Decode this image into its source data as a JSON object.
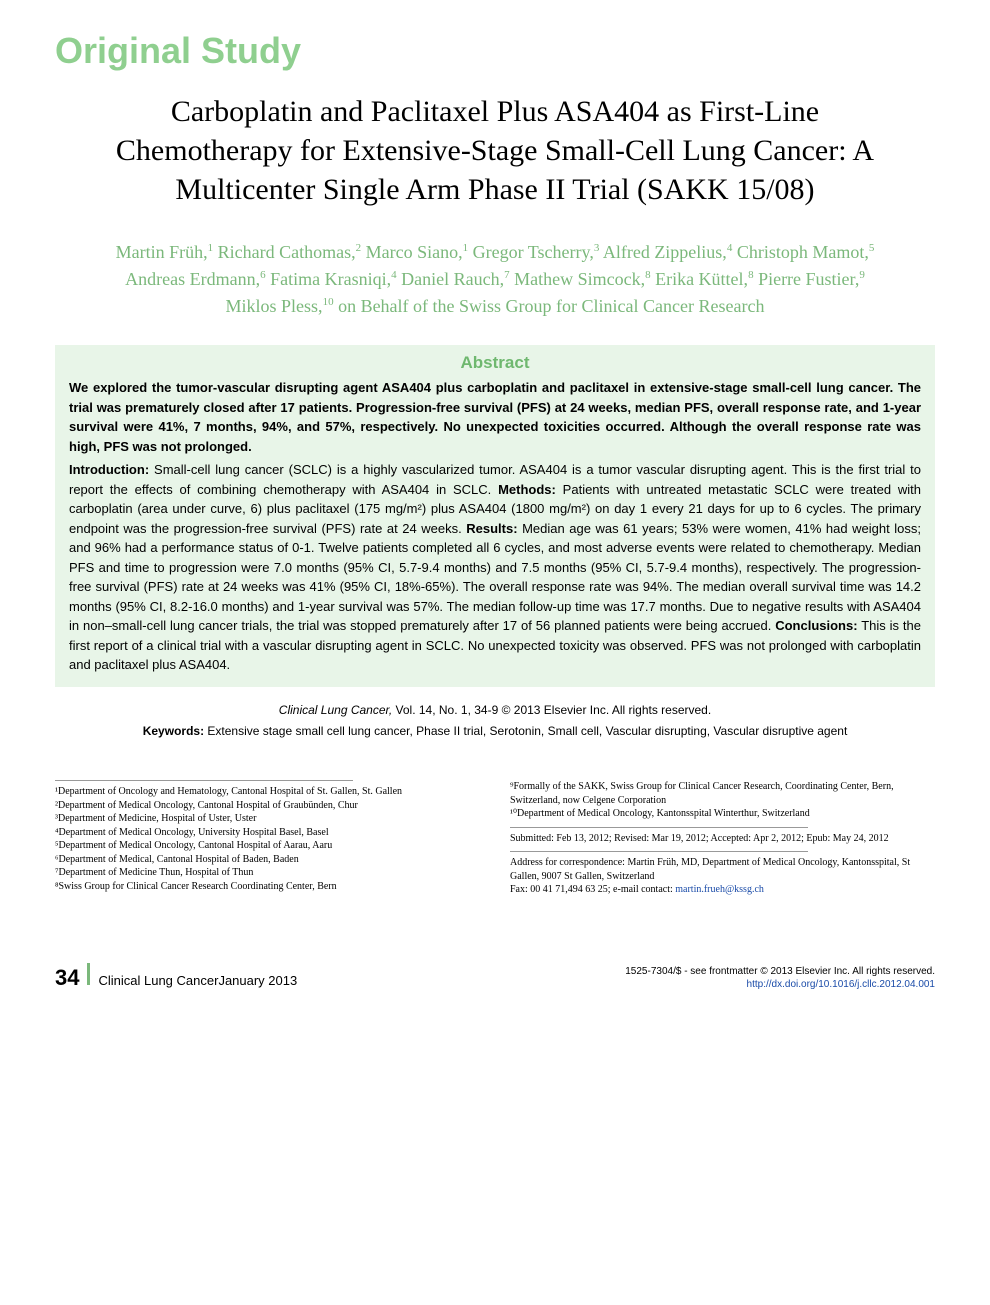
{
  "section_label": "Original Study",
  "title": "Carboplatin and Paclitaxel Plus ASA404 as First-Line Chemotherapy for Extensive-Stage Small-Cell Lung Cancer: A Multicenter Single Arm Phase II Trial (SAKK 15/08)",
  "authors_html": "Martin Früh,<sup>1</sup> Richard Cathomas,<sup>2</sup> Marco Siano,<sup>1</sup> Gregor Tscherry,<sup>3</sup> Alfred Zippelius,<sup>4</sup> Christoph Mamot,<sup>5</sup> Andreas Erdmann,<sup>6</sup> Fatima Krasniqi,<sup>4</sup> Daniel Rauch,<sup>7</sup> Mathew Simcock,<sup>8</sup> Erika Küttel,<sup>8</sup> Pierre Fustier,<sup>9</sup> Miklos Pless,<sup>10</sup> on Behalf of the Swiss Group for Clinical Cancer Research",
  "abstract": {
    "heading": "Abstract",
    "summary": "We explored the tumor-vascular disrupting agent ASA404 plus carboplatin and paclitaxel in extensive-stage small-cell lung cancer. The trial was prematurely closed after 17 patients. Progression-free survival (PFS) at 24 weeks, median PFS, overall response rate, and 1-year survival were 41%, 7 months, 94%, and 57%, respectively. No unexpected toxicities occurred. Although the overall response rate was high, PFS was not prolonged.",
    "introduction_label": "Introduction:",
    "introduction": " Small-cell lung cancer (SCLC) is a highly vascularized tumor. ASA404 is a tumor vascular disrupting agent. This is the first trial to report the effects of combining chemotherapy with ASA404 in SCLC. ",
    "methods_label": "Methods:",
    "methods": " Patients with untreated metastatic SCLC were treated with carboplatin (area under curve, 6) plus paclitaxel (175 mg/m²) plus ASA404 (1800 mg/m²) on day 1 every 21 days for up to 6 cycles. The primary endpoint was the progression-free survival (PFS) rate at 24 weeks. ",
    "results_label": "Results:",
    "results": " Median age was 61 years; 53% were women, 41% had weight loss; and 96% had a performance status of 0-1. Twelve patients completed all 6 cycles, and most adverse events were related to chemotherapy. Median PFS and time to progression were 7.0 months (95% CI, 5.7-9.4 months) and 7.5 months (95% CI, 5.7-9.4 months), respectively. The progression-free survival (PFS) rate at 24 weeks was 41% (95% CI, 18%-65%). The overall response rate was 94%. The median overall survival time was 14.2 months (95% CI, 8.2-16.0 months) and 1-year survival was 57%. The median follow-up time was 17.7 months. Due to negative results with ASA404 in non–small-cell lung cancer trials, the trial was stopped prematurely after 17 of 56 planned patients were being accrued. ",
    "conclusions_label": "Conclusions:",
    "conclusions": " This is the first report of a clinical trial with a vascular disrupting agent in SCLC. No unexpected toxicity was observed. PFS was not prolonged with carboplatin and paclitaxel plus ASA404."
  },
  "citation": {
    "journal": "Clinical Lung Cancer,",
    "vol": " Vol. 14, No. 1, 34-9 © 2013 Elsevier Inc. All rights reserved."
  },
  "keywords": {
    "label": "Keywords:",
    "text": "  Extensive stage small cell lung cancer, Phase II trial, Serotonin, Small cell, Vascular disrupting, Vascular disruptive agent"
  },
  "affiliations_left": [
    "¹Department of Oncology and Hematology, Cantonal Hospital of St. Gallen, St. Gallen",
    "²Department of Medical Oncology, Cantonal Hospital of Graubünden, Chur",
    "³Department of Medicine, Hospital of Uster, Uster",
    "⁴Department of Medical Oncology, University Hospital Basel, Basel",
    "⁵Department of Medical Oncology, Cantonal Hospital of Aarau, Aaru",
    "⁶Department of Medical, Cantonal Hospital of Baden, Baden",
    "⁷Department of Medicine Thun, Hospital of Thun",
    "⁸Swiss Group for Clinical Cancer Research Coordinating Center, Bern"
  ],
  "affiliations_right_block1": [
    "⁹Formally of the SAKK, Swiss Group for Clinical Cancer Research, Coordinating Center, Bern, Switzerland, now Celgene Corporation",
    "¹⁰Department of Medical Oncology, Kantonsspital Winterthur, Switzerland"
  ],
  "affiliations_right_block2": "Submitted: Feb 13, 2012; Revised: Mar 19, 2012; Accepted: Apr 2, 2012; Epub: May 24, 2012",
  "affiliations_right_block3": [
    "Address for correspondence: Martin Früh, MD, Department of Medical Oncology, Kantonsspital, St Gallen, 9007 St Gallen, Switzerland",
    "Fax: 00 41 71,494 63 25; e-mail contact: martin.frueh@kssg.ch"
  ],
  "footer": {
    "page": "34",
    "journal": "Clinical Lung Cancer",
    "issue": "  January 2013",
    "copyright": "1525-7304/$ - see frontmatter © 2013 Elsevier Inc. All rights reserved.",
    "doi": "http://dx.doi.org/10.1016/j.cllc.2012.04.001"
  },
  "colors": {
    "green_light": "#8fcf8f",
    "green_text": "#7bb87b",
    "green_heading": "#6fb86f",
    "abstract_bg": "#e8f5e8",
    "link": "#1a4ba8"
  }
}
